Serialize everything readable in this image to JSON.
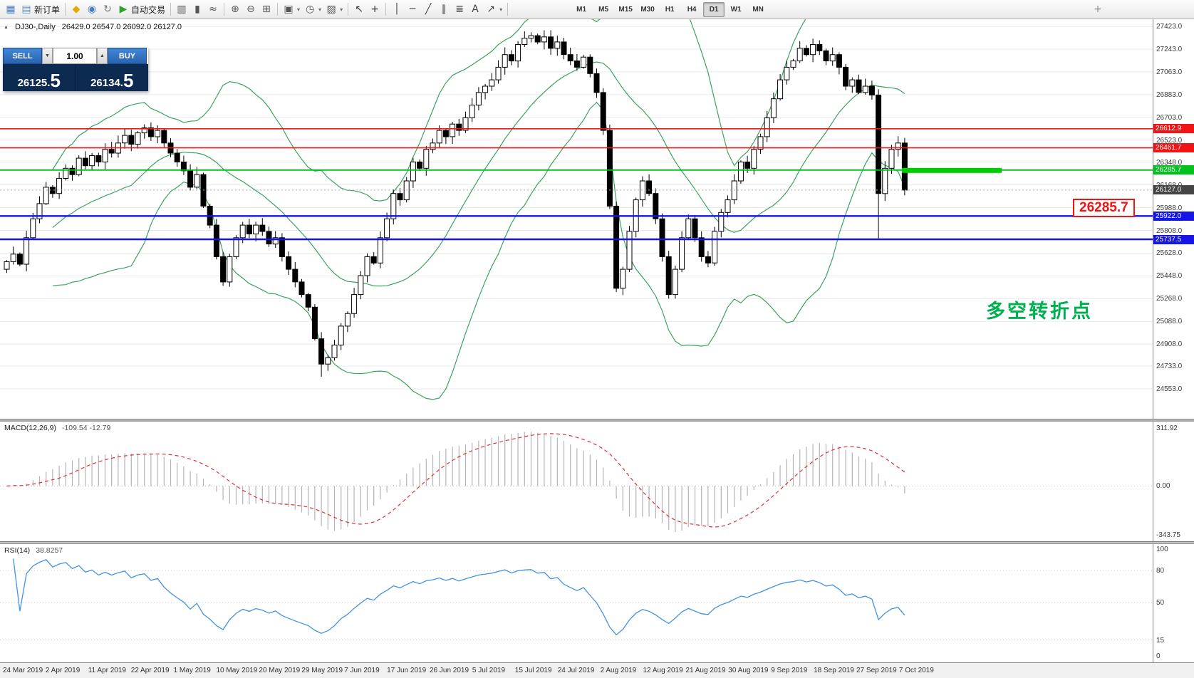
{
  "toolbar": {
    "caret_glyph": "▾",
    "items": [
      {
        "name": "chart-window-icon",
        "glyph": "▦",
        "color": "#4a7dbf",
        "type": "icon"
      },
      {
        "name": "new-order-button",
        "glyph": "▤",
        "color": "#6a92c0",
        "label": "新订单",
        "type": "labeled"
      },
      {
        "type": "sep"
      },
      {
        "name": "profiles-icon",
        "glyph": "◆",
        "color": "#e5a800",
        "type": "icon"
      },
      {
        "name": "market-watch-icon",
        "glyph": "◉",
        "color": "#4a7dbf",
        "type": "icon"
      },
      {
        "name": "refresh-icon",
        "glyph": "↻",
        "color": "#777777",
        "type": "icon"
      },
      {
        "name": "autotrading-button",
        "glyph": "▶",
        "color": "#2aa52a",
        "label": "自动交易",
        "type": "labeled"
      },
      {
        "type": "sep"
      },
      {
        "name": "bar-chart-icon",
        "glyph": "▥",
        "color": "#555555",
        "type": "icon"
      },
      {
        "name": "candlestick-chart-icon",
        "glyph": "▮",
        "color": "#555555",
        "type": "icon"
      },
      {
        "name": "line-chart-icon",
        "glyph": "≈",
        "color": "#555555",
        "type": "icon"
      },
      {
        "type": "sep"
      },
      {
        "name": "zoom-in-icon",
        "glyph": "⊕",
        "color": "#555555",
        "type": "icon"
      },
      {
        "name": "zoom-out-icon",
        "glyph": "⊖",
        "color": "#555555",
        "type": "icon"
      },
      {
        "name": "tile-windows-icon",
        "glyph": "⊞",
        "color": "#555555",
        "type": "icon"
      },
      {
        "type": "sep"
      },
      {
        "name": "new-chart-icon",
        "glyph": "▣",
        "color": "#555555",
        "type": "icon",
        "caret": true
      },
      {
        "name": "period-icon",
        "glyph": "◷",
        "color": "#555555",
        "type": "icon",
        "caret": true
      },
      {
        "name": "template-icon",
        "glyph": "▨",
        "color": "#555555",
        "type": "icon",
        "caret": true
      },
      {
        "type": "sep"
      },
      {
        "name": "cursor-icon",
        "glyph": "↖",
        "color": "#333333",
        "type": "icon"
      },
      {
        "name": "crosshair-icon",
        "glyph": "+",
        "color": "#333333",
        "type": "icon"
      },
      {
        "type": "sep"
      },
      {
        "name": "vertical-line-icon",
        "glyph": "│",
        "color": "#444444",
        "type": "icon"
      },
      {
        "name": "horizontal-line-icon",
        "glyph": "─",
        "color": "#444444",
        "type": "icon"
      },
      {
        "name": "trendline-icon",
        "glyph": "╱",
        "color": "#444444",
        "type": "icon"
      },
      {
        "name": "channel-icon",
        "glyph": "∥",
        "color": "#444444",
        "type": "icon"
      },
      {
        "name": "fibonacci-icon",
        "glyph": "≣",
        "color": "#444444",
        "type": "icon"
      },
      {
        "name": "text-icon",
        "glyph": "A",
        "color": "#444444",
        "type": "icon"
      },
      {
        "name": "arrows-icon",
        "glyph": "↗",
        "color": "#444444",
        "type": "icon",
        "caret": true
      },
      {
        "type": "sep"
      }
    ],
    "timeframes": [
      "M1",
      "M5",
      "M15",
      "M30",
      "H1",
      "H4",
      "D1",
      "W1",
      "MN"
    ],
    "active_timeframe": "D1",
    "right_icons": [
      {
        "name": "add-icon",
        "glyph": "+",
        "color": "#888888"
      }
    ]
  },
  "trade_panel": {
    "sell_label": "SELL",
    "buy_label": "BUY",
    "volume": "1.00",
    "dec_glyph": "▼",
    "inc_glyph": "▲",
    "bid_base": "26125.",
    "bid_big": "5",
    "ask_base": "26134.",
    "ask_big": "5"
  },
  "chart_data": {
    "type": "candlestick",
    "symbol_period": "DJ30-,Daily",
    "marker_glyph": "▲",
    "ohlc_text": "26429.0 26547.0 26092.0 26127.0",
    "ohlc": {
      "open": 26429.0,
      "high": 26547.0,
      "low": 26092.0,
      "close": 26127.0
    },
    "y_ticks": [
      27423,
      27243,
      27063,
      26883,
      26703,
      26523,
      26348,
      26168,
      25988,
      25808,
      25628,
      25448,
      25268,
      25088,
      24908,
      24733,
      24553
    ],
    "dates": [
      "24 Mar 2019",
      "2 Apr 2019",
      "11 Apr 2019",
      "22 Apr 2019",
      "1 May 2019",
      "10 May 2019",
      "20 May 2019",
      "29 May 2019",
      "7 Jun 2019",
      "17 Jun 2019",
      "26 Jun 2019",
      "5 Jul 2019",
      "15 Jul 2019",
      "24 Jul 2019",
      "2 Aug 2019",
      "12 Aug 2019",
      "21 Aug 2019",
      "30 Aug 2019",
      "9 Sep 2019",
      "18 Sep 2019",
      "27 Sep 2019",
      "7 Oct 2019"
    ],
    "closes": [
      25560,
      25620,
      25540,
      25750,
      25900,
      26020,
      26150,
      26100,
      26220,
      26300,
      26250,
      26380,
      26320,
      26400,
      26350,
      26450,
      26420,
      26500,
      26560,
      26490,
      26580,
      26620,
      26550,
      26600,
      26500,
      26420,
      26350,
      26280,
      26150,
      26250,
      26000,
      25850,
      25600,
      25400,
      25600,
      25750,
      25850,
      25780,
      25850,
      25800,
      25700,
      25750,
      25600,
      25500,
      25400,
      25300,
      25200,
      24950,
      24750,
      24800,
      24900,
      25050,
      25150,
      25300,
      25450,
      25600,
      25550,
      25750,
      25900,
      26100,
      26050,
      26200,
      26350,
      26300,
      26450,
      26500,
      26600,
      26550,
      26650,
      26600,
      26700,
      26800,
      26900,
      26950,
      27000,
      27100,
      27200,
      27150,
      27280,
      27330,
      27350,
      27300,
      27340,
      27250,
      27300,
      27200,
      27150,
      27100,
      27180,
      27050,
      26900,
      26600,
      26000,
      25350,
      25500,
      25800,
      26050,
      26200,
      26100,
      25900,
      25600,
      25300,
      25500,
      25750,
      25900,
      25750,
      25600,
      25550,
      25800,
      25950,
      26050,
      26200,
      26350,
      26300,
      26450,
      26550,
      26700,
      26850,
      27000,
      27100,
      27150,
      27250,
      27200,
      27280,
      27230,
      27150,
      27200,
      27100,
      26950,
      27000,
      26900,
      26950,
      26880,
      26100,
      26300,
      26450,
      26500,
      26127
    ],
    "wick_overrides": {
      "48": 24650,
      "133": 25745
    },
    "hlines": [
      {
        "price": 26612.9,
        "label": "26612.9",
        "color": "#f01414",
        "width": 1.6
      },
      {
        "price": 26461.7,
        "label": "26461.7",
        "color": "#f01414",
        "width": 1.6
      },
      {
        "price": 26285.7,
        "label": "26285.7",
        "color": "#00c21c",
        "width": 2
      },
      {
        "price": 25922.0,
        "label": "25922.0",
        "color": "#1515e8",
        "width": 2.4
      },
      {
        "price": 25737.5,
        "label": "25737.5",
        "color": "#1515e8",
        "width": 2.4
      }
    ],
    "current_price": {
      "value": 26127.0,
      "label": "26127.0",
      "tag_color": "#454545"
    },
    "highlight_bar": {
      "price": 26285.7,
      "color": "#00cd00"
    },
    "annotation": "多空转折点",
    "annotation_color": "#00b050",
    "callout": "26285.7",
    "colors": {
      "bollinger": "#3aa35c",
      "bull": "#ffffff",
      "bear": "#000000",
      "grid": "#e9e9e9",
      "macd_hist": "#b4b4b4",
      "macd_signal": "#e03030",
      "rsi_line": "#4293df"
    },
    "indicators": {
      "bollinger": {
        "period": 20,
        "deviation": 2
      },
      "macd": {
        "label": "MACD(12,26,9)",
        "values": "-109.54 -12.79",
        "axis": [
          "311.92",
          "0.00",
          "-343.75"
        ],
        "fast": 12,
        "slow": 26,
        "signal": 9
      },
      "rsi": {
        "label": "RSI(14)",
        "value": "38.8257",
        "axis": [
          "100",
          "80",
          "50",
          "15",
          "0"
        ],
        "levels": [
          80,
          50,
          15
        ],
        "period": 14
      }
    }
  }
}
